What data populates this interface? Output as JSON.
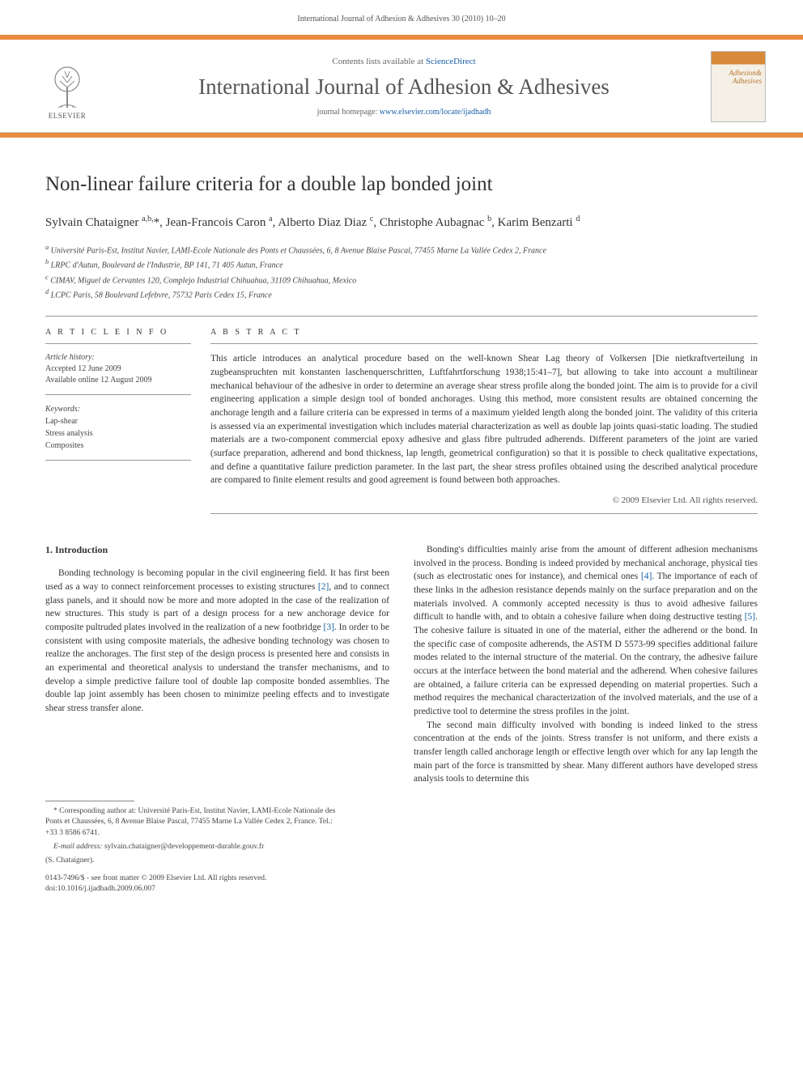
{
  "running_header": "International Journal of Adhesion & Adhesives 30 (2010) 10–20",
  "top": {
    "contents_prefix": "Contents lists available at ",
    "contents_link": "ScienceDirect",
    "journal_title": "International Journal of Adhesion & Adhesives",
    "homepage_prefix": "journal homepage: ",
    "homepage_link": "www.elsevier.com/locate/ijadhadh",
    "publisher": "ELSEVIER",
    "cover_text_1": "Adhesion&",
    "cover_text_2": "Adhesives"
  },
  "article": {
    "title": "Non-linear failure criteria for a double lap bonded joint",
    "authors_html": "Sylvain Chataigner <sup>a,b,</sup><span class='star'>*</span>, Jean-Francois Caron <sup>a</sup>, Alberto Diaz Diaz <sup>c</sup>, Christophe Aubagnac <sup>b</sup>, Karim Benzarti <sup>d</sup>",
    "affiliations": [
      "a Université Paris-Est, Institut Navier, LAMI-Ecole Nationale des Ponts et Chaussées, 6, 8 Avenue Blaise Pascal, 77455 Marne La Vallée Cedex 2, France",
      "b LRPC d'Autun, Boulevard de l'Industrie, BP 141, 71 405 Autun, France",
      "c CIMAV, Miguel de Cervantes 120, Complejo Industrial Chihuahua, 31109 Chihuahua, Mexico",
      "d LCPC Paris, 58 Boulevard Lefebvre, 75732 Paris Cedex 15, France"
    ]
  },
  "info": {
    "heading": "A R T I C L E  I N F O",
    "history_label": "Article history:",
    "accepted": "Accepted 12 June 2009",
    "online": "Available online 12 August 2009",
    "keywords_label": "Keywords:",
    "keywords": [
      "Lap-shear",
      "Stress analysis",
      "Composites"
    ]
  },
  "abstract": {
    "heading": "A B S T R A C T",
    "text": "This article introduces an analytical procedure based on the well-known Shear Lag theory of Volkersen [Die nietkraftverteilung in zugbeanspruchten mit konstanten laschenquerschritten, Luftfahrtforschung 1938;15:41–7], but allowing to take into account a multilinear mechanical behaviour of the adhesive in order to determine an average shear stress profile along the bonded joint. The aim is to provide for a civil engineering application a simple design tool of bonded anchorages. Using this method, more consistent results are obtained concerning the anchorage length and a failure criteria can be expressed in terms of a maximum yielded length along the bonded joint. The validity of this criteria is assessed via an experimental investigation which includes material characterization as well as double lap joints quasi-static loading. The studied materials are a two-component commercial epoxy adhesive and glass fibre pultruded adherends. Different parameters of the joint are varied (surface preparation, adherend and bond thickness, lap length, geometrical configuration) so that it is possible to check qualitative expectations, and define a quantitative failure prediction parameter. In the last part, the shear stress profiles obtained using the described analytical procedure are compared to finite element results and good agreement is found between both approaches.",
    "copyright": "© 2009 Elsevier Ltd. All rights reserved."
  },
  "body": {
    "section_heading": "1.  Introduction",
    "col1_p1": "Bonding technology is becoming popular in the civil engineering field. It has first been used as a way to connect reinforcement processes to existing structures <span class='cite'>[2]</span>, and to connect glass panels, and it should now be more and more adopted in the case of the realization of new structures. This study is part of a design process for a new anchorage device for composite pultruded plates involved in the realization of a new footbridge <span class='cite'>[3]</span>. In order to be consistent with using composite materials, the adhesive bonding technology was chosen to realize the anchorages. The first step of the design process is presented here and consists in an experimental and theoretical analysis to understand the transfer mechanisms, and to develop a simple predictive failure tool of double lap composite bonded assemblies. The double lap joint assembly has been chosen to minimize peeling effects and to investigate shear stress transfer alone.",
    "col2_p1": "Bonding's difficulties mainly arise from the amount of different adhesion mechanisms involved in the process. Bonding is indeed provided by mechanical anchorage, physical ties (such as electrostatic ones for instance), and chemical ones <span class='cite'>[4]</span>. The importance of each of these links in the adhesion resistance depends mainly on the surface preparation and on the materials involved. A commonly accepted necessity is thus to avoid adhesive failures difficult to handle with, and to obtain a cohesive failure when doing destructive testing <span class='cite'>[5]</span>. The cohesive failure is situated in one of the material, either the adherend or the bond. In the specific case of composite adherends, the ASTM D 5573-99 specifies additional failure modes related to the internal structure of the material. On the contrary, the adhesive failure occurs at the interface between the bond material and the adherend. When cohesive failures are obtained, a failure criteria can be expressed depending on material properties. Such a method requires the mechanical characterization of the involved materials, and the use of a predictive tool to determine the stress profiles in the joint.",
    "col2_p2": "The second main difficulty involved with bonding is indeed linked to the stress concentration at the ends of the joints. Stress transfer is not uniform, and there exists a transfer length called anchorage length or effective length over which for any lap length the main part of the force is transmitted by shear. Many different authors have developed stress analysis tools to determine this"
  },
  "footnotes": {
    "corr": "* Corresponding author at: Université Paris-Est, Institut Navier, LAMI-Ecole Nationale des Ponts et Chaussées, 6, 8 Avenue Blaise Pascal, 77455 Marne La Vallée Cedex 2, France. Tel.: +33 3 8586 6741.",
    "email_label": "E-mail address:",
    "email": "sylvain.chataigner@developpement-durable.gouv.fr",
    "email_author": "(S. Chataigner).",
    "issn": "0143-7496/$ - see front matter © 2009 Elsevier Ltd. All rights reserved.",
    "doi": "doi:10.1016/j.ijadhadh.2009.06.007"
  },
  "colors": {
    "accent": "#e98a3f",
    "link": "#1660a6",
    "text": "#333333",
    "muted": "#666666"
  }
}
